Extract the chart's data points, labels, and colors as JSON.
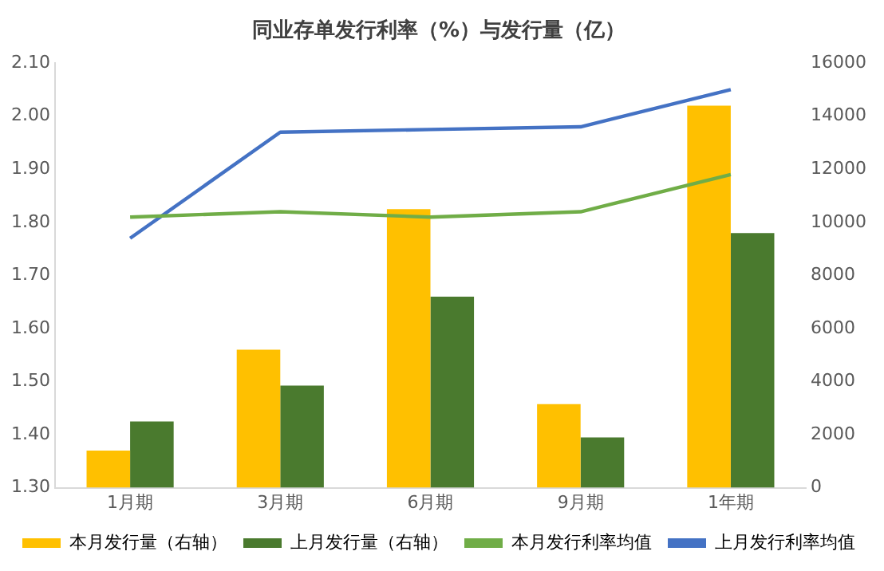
{
  "chart_data": {
    "type": "bar",
    "title": "同业存单发行利率（%）与发行量（亿）",
    "categories": [
      "1月期",
      "3月期",
      "6月期",
      "9月期",
      "1年期"
    ],
    "series": [
      {
        "name": "本月发行量（右轴）",
        "axis": "y2",
        "color": "#ffc000",
        "values": [
          1400,
          5200,
          10500,
          3150,
          14400
        ]
      },
      {
        "name": "上月发行量（右轴）",
        "axis": "y2",
        "color": "#4a7a2e",
        "values": [
          2500,
          3850,
          7200,
          1900,
          9600
        ]
      },
      {
        "name": "本月发行利率均值",
        "type": "line",
        "color": "#70ad47",
        "values": [
          1.81,
          1.82,
          1.81,
          1.82,
          1.89
        ]
      },
      {
        "name": "上月发行利率均值",
        "type": "line",
        "color": "#4472c4",
        "values": [
          1.77,
          1.97,
          1.975,
          1.98,
          2.05
        ]
      }
    ],
    "ylim": [
      1.3,
      2.1
    ],
    "yticks": [
      {
        "value": 1.3,
        "label": "1.30"
      },
      {
        "value": 1.4,
        "label": "1.40"
      },
      {
        "value": 1.5,
        "label": "1.50"
      },
      {
        "value": 1.6,
        "label": "1.60"
      },
      {
        "value": 1.7,
        "label": "1.70"
      },
      {
        "value": 1.8,
        "label": "1.80"
      },
      {
        "value": 1.9,
        "label": "1.90"
      },
      {
        "value": 2.0,
        "label": "2.00"
      },
      {
        "value": 2.1,
        "label": "2.10"
      }
    ],
    "y2lim": [
      0,
      16000
    ],
    "y2ticks": [
      0,
      2000,
      4000,
      6000,
      8000,
      10000,
      12000,
      14000,
      16000
    ],
    "grid": false,
    "legend": "bottom",
    "marker": "none",
    "line_style": "solid"
  }
}
